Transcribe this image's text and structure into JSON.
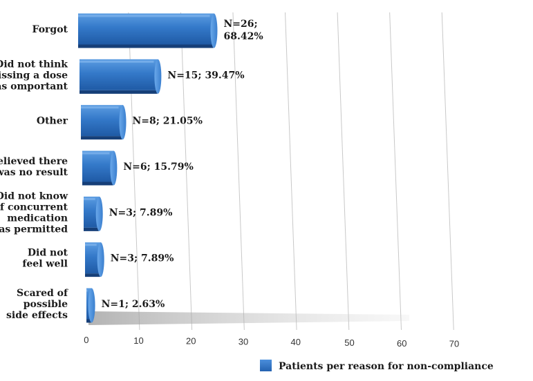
{
  "chart_data": {
    "type": "bar",
    "orientation": "horizontal",
    "categories": [
      [
        "Forgot"
      ],
      [
        "Did not think",
        "missing a dose",
        "was omportant"
      ],
      [
        "Other"
      ],
      [
        "Believed there",
        "was no result"
      ],
      [
        "Did not know",
        "if concurrent",
        "medication",
        "was permitted"
      ],
      [
        "Did not",
        "feel well"
      ],
      [
        "Scared of",
        "possible",
        "side effects"
      ]
    ],
    "values": [
      26,
      15,
      8,
      6,
      3,
      3,
      1
    ],
    "data_labels": [
      [
        "N=26;",
        "68.42%"
      ],
      [
        "N=15; 39.47%"
      ],
      [
        "N=8; 21.05%"
      ],
      [
        "N=6; 15.79%"
      ],
      [
        "N=3; 7.89%"
      ],
      [
        "N=3; 7.89%"
      ],
      [
        "N=1; 2.63%"
      ]
    ],
    "xlim": [
      0,
      70
    ],
    "xticks": [
      0,
      10,
      20,
      30,
      40,
      50,
      60,
      70
    ],
    "grid": "vertical",
    "legend": {
      "position": "bottom-right",
      "entries": [
        "Patients per reason for non-compliance"
      ]
    },
    "colors": {
      "bar": "#2f72c4",
      "bar_light": "#5a9be0",
      "bar_dark": "#1d4f93",
      "grid": "#c8c8c8"
    }
  }
}
